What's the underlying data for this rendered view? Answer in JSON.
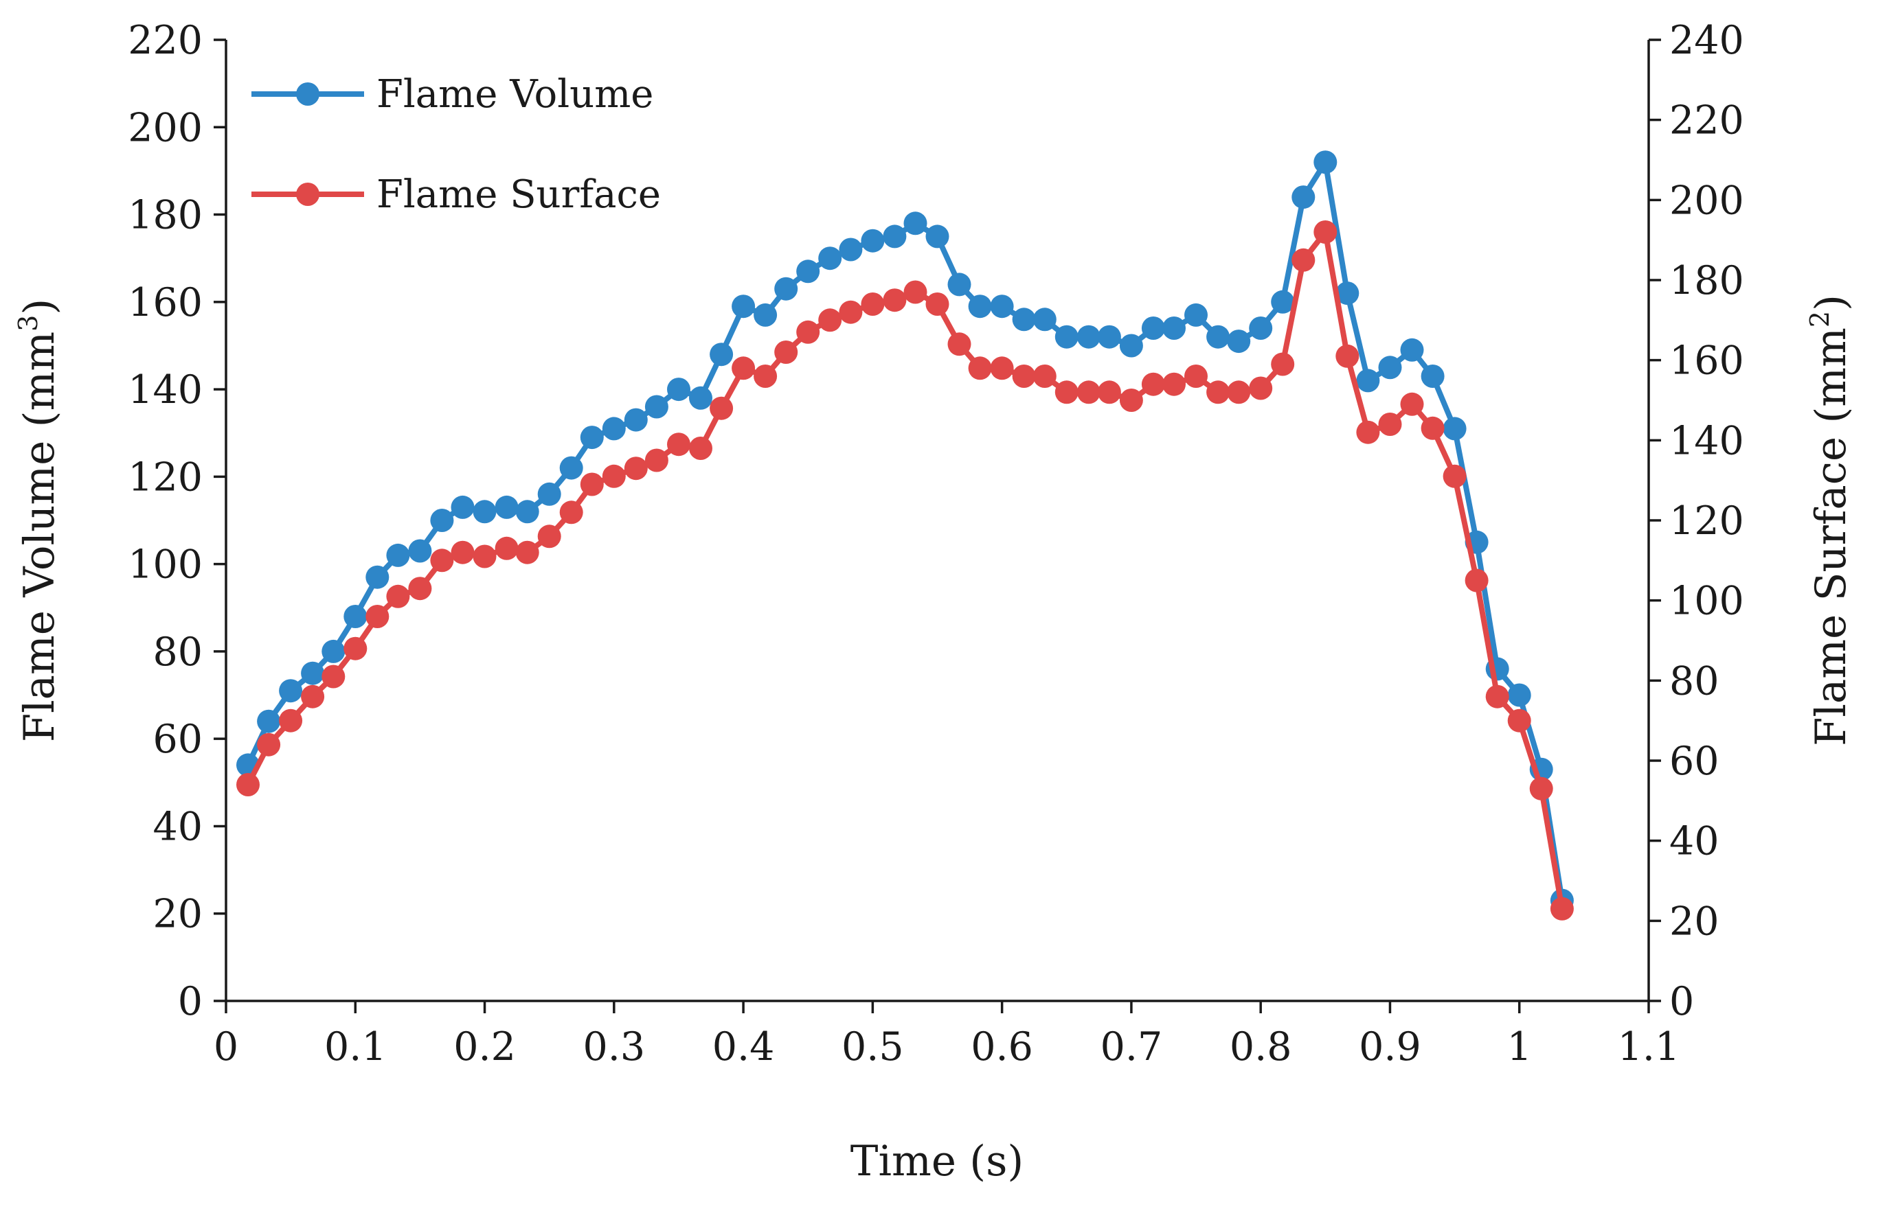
{
  "chart_data": {
    "type": "line",
    "title": "",
    "xlabel": "Time (s)",
    "ylabel": {
      "text": "Flame Volume (mm",
      "sup": "3",
      "suffix": ")"
    },
    "y2label": {
      "text": "Flame Surface (mm",
      "sup": "2",
      "suffix": ")"
    },
    "xlim": [
      0,
      1.1
    ],
    "ylim": [
      0,
      220
    ],
    "y2lim": [
      0,
      240
    ],
    "xticks": [
      "0",
      "0.1",
      "0.2",
      "0.3",
      "0.4",
      "0.5",
      "0.6",
      "0.7",
      "0.8",
      "0.9",
      "1",
      "1.1"
    ],
    "yticks": [
      "0",
      "20",
      "40",
      "60",
      "80",
      "100",
      "120",
      "140",
      "160",
      "180",
      "200",
      "220"
    ],
    "y2ticks": [
      "0",
      "20",
      "40",
      "60",
      "80",
      "100",
      "120",
      "140",
      "160",
      "180",
      "200",
      "220",
      "240"
    ],
    "grid": false,
    "legend_position": "top-left",
    "x": [
      0.017,
      0.033,
      0.05,
      0.067,
      0.083,
      0.1,
      0.117,
      0.133,
      0.15,
      0.167,
      0.183,
      0.2,
      0.217,
      0.233,
      0.25,
      0.267,
      0.283,
      0.3,
      0.317,
      0.333,
      0.35,
      0.367,
      0.383,
      0.4,
      0.417,
      0.433,
      0.45,
      0.467,
      0.483,
      0.5,
      0.517,
      0.533,
      0.55,
      0.567,
      0.583,
      0.6,
      0.617,
      0.633,
      0.65,
      0.667,
      0.683,
      0.7,
      0.717,
      0.733,
      0.75,
      0.767,
      0.783,
      0.8,
      0.817,
      0.833,
      0.85,
      0.867,
      0.883,
      0.9,
      0.917,
      0.933,
      0.95,
      0.967,
      0.983,
      1.0,
      1.017,
      1.033
    ],
    "series": [
      {
        "name": "Flame Volume",
        "axis": "left",
        "color": "#2e86c8",
        "values": [
          54,
          64,
          71,
          75,
          80,
          88,
          97,
          102,
          103,
          110,
          113,
          112,
          113,
          112,
          116,
          122,
          129,
          131,
          133,
          136,
          140,
          138,
          148,
          159,
          157,
          163,
          167,
          170,
          172,
          174,
          175,
          178,
          175,
          164,
          159,
          159,
          156,
          156,
          152,
          152,
          152,
          150,
          154,
          154,
          157,
          152,
          151,
          154,
          160,
          184,
          192,
          162,
          142,
          145,
          149,
          143,
          131,
          105,
          76,
          70,
          53,
          23
        ]
      },
      {
        "name": "Flame Surface",
        "axis": "right",
        "color": "#e04848",
        "values": [
          54,
          64,
          70,
          76,
          81,
          88,
          96,
          101,
          103,
          110,
          112,
          111,
          113,
          112,
          116,
          122,
          129,
          131,
          133,
          135,
          139,
          138,
          148,
          158,
          156,
          162,
          167,
          170,
          172,
          174,
          175,
          177,
          174,
          164,
          158,
          158,
          156,
          156,
          152,
          152,
          152,
          150,
          154,
          154,
          156,
          152,
          152,
          153,
          159,
          185,
          192,
          161,
          142,
          144,
          149,
          143,
          131,
          105,
          76,
          70,
          53,
          23
        ]
      }
    ]
  }
}
